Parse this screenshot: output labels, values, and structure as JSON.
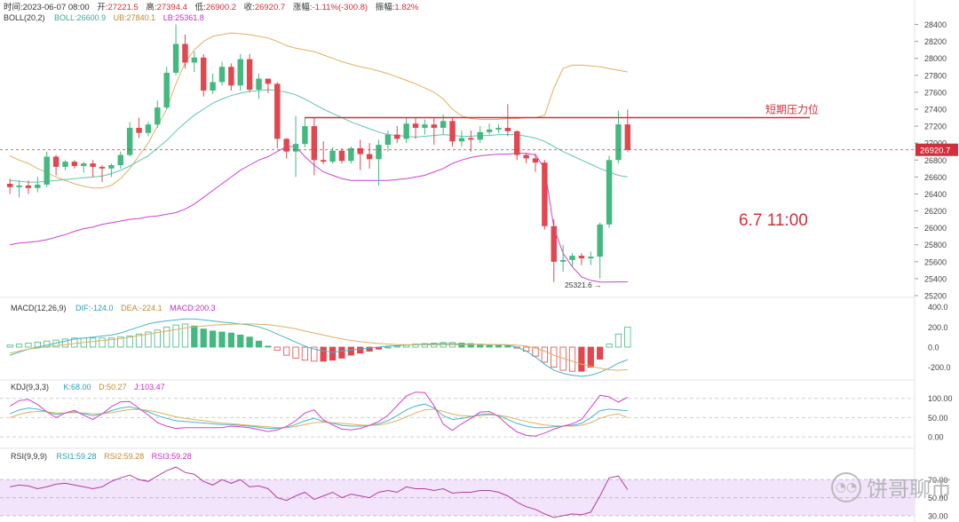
{
  "header": {
    "time_label": "时间:",
    "time_value": "2023-06-07 08:00",
    "open_label": "开:",
    "open_value": "27221.5",
    "high_label": "高:",
    "high_value": "27394.4",
    "low_label": "低:",
    "low_value": "26900.2",
    "close_label": "收:",
    "close_value": "26920.7",
    "change_label": "涨幅:",
    "change_value": "-1.11%(-300.8)",
    "amp_label": "振幅:",
    "amp_value": "1.82%"
  },
  "boll": {
    "name": "BOLL(20,2)",
    "mid": "BOLL:26600.9",
    "ub": "UB:27840.1",
    "lb": "LB:25361.8",
    "mid_color": "#5bc8b0",
    "ub_color": "#e0b060",
    "lb_color": "#d040d0"
  },
  "macd": {
    "name": "MACD(12,26,9)",
    "dif": "DIF:-124.0",
    "dea": "DEA:-224.1",
    "macd": "MACD:200.3",
    "dif_color": "#42b8c8",
    "dea_color": "#e0b060"
  },
  "kdj": {
    "name": "KDJ(9,3,3)",
    "k": "K:68.00",
    "d": "D:50.27",
    "j": "J:103.47",
    "k_color": "#42b8c8",
    "d_color": "#e0b060",
    "j_color": "#d040d0"
  },
  "rsi": {
    "name": "RSI(9,9,9)",
    "rsi1": "RSI1:59.28",
    "rsi2": "RSI2:59.28",
    "rsi3": "RSI3:59.28",
    "color": "#b040a0"
  },
  "annotations": {
    "resistance_label": "短期压力位",
    "resistance_price": 27300,
    "date_label": "6.7  11:00",
    "low_marker": "25321.6 →",
    "last_price": "26920.7",
    "accent": "#d0303b"
  },
  "colors": {
    "up": "#43b97f",
    "down": "#e0474f"
  },
  "watermark": "饼哥聊币",
  "chart_data": {
    "type": "candlestick",
    "price_axis": {
      "range": [
        25200,
        28500
      ],
      "ticks": [
        25200,
        25400,
        25600,
        25800,
        26000,
        26200,
        26400,
        26600,
        26800,
        27000,
        27200,
        27400,
        27600,
        27800,
        28000,
        28200,
        28400
      ]
    },
    "macd_axis": {
      "range": [
        -300,
        450
      ],
      "ticks": [
        400.0,
        200.0,
        0.0,
        -200.0
      ]
    },
    "kdj_axis": {
      "range": [
        -25,
        120
      ],
      "ticks": [
        100.0,
        50.0,
        0.0
      ]
    },
    "rsi_axis": {
      "range": [
        25,
        90
      ],
      "ticks": [
        70.0,
        50.0,
        30.0
      ]
    },
    "candles": [
      [
        26520,
        26580,
        26400,
        26480
      ],
      [
        26480,
        26560,
        26360,
        26500
      ],
      [
        26500,
        26560,
        26400,
        26470
      ],
      [
        26470,
        26600,
        26420,
        26510
      ],
      [
        26510,
        26900,
        26480,
        26840
      ],
      [
        26840,
        26860,
        26620,
        26720
      ],
      [
        26720,
        26800,
        26680,
        26780
      ],
      [
        26780,
        26800,
        26700,
        26730
      ],
      [
        26730,
        26780,
        26650,
        26760
      ],
      [
        26760,
        26800,
        26600,
        26720
      ],
      [
        26720,
        26740,
        26540,
        26700
      ],
      [
        26700,
        26760,
        26600,
        26740
      ],
      [
        26740,
        26900,
        26700,
        26860
      ],
      [
        26860,
        27250,
        26840,
        27180
      ],
      [
        27180,
        27300,
        27060,
        27120
      ],
      [
        27120,
        27250,
        27080,
        27220
      ],
      [
        27220,
        27500,
        27180,
        27420
      ],
      [
        27420,
        27900,
        27400,
        27830
      ],
      [
        27830,
        28400,
        27800,
        28170
      ],
      [
        28170,
        28280,
        27880,
        27950
      ],
      [
        27950,
        28080,
        27840,
        28010
      ],
      [
        28010,
        28050,
        27550,
        27620
      ],
      [
        27620,
        27820,
        27580,
        27720
      ],
      [
        27720,
        27960,
        27680,
        27900
      ],
      [
        27900,
        27940,
        27620,
        27680
      ],
      [
        27680,
        28050,
        27620,
        27990
      ],
      [
        27990,
        28050,
        27600,
        27630
      ],
      [
        27630,
        27820,
        27520,
        27760
      ],
      [
        27760,
        27760,
        27590,
        27700
      ],
      [
        27700,
        27720,
        26940,
        27050
      ],
      [
        27050,
        27060,
        26820,
        26900
      ],
      [
        26900,
        27320,
        26600,
        26990
      ],
      [
        26990,
        27300,
        26950,
        27200
      ],
      [
        27200,
        27300,
        26620,
        26800
      ],
      [
        26800,
        27020,
        26750,
        26780
      ],
      [
        26780,
        26950,
        26760,
        26910
      ],
      [
        26910,
        26940,
        26760,
        26790
      ],
      [
        26790,
        26960,
        26760,
        26940
      ],
      [
        26940,
        27040,
        26680,
        26870
      ],
      [
        26870,
        27000,
        26700,
        26810
      ],
      [
        26810,
        27040,
        26500,
        26980
      ],
      [
        26980,
        27150,
        26900,
        27100
      ],
      [
        27100,
        27200,
        27000,
        27050
      ],
      [
        27050,
        27300,
        27000,
        27230
      ],
      [
        27230,
        27300,
        27050,
        27180
      ],
      [
        27180,
        27280,
        27100,
        27220
      ],
      [
        27220,
        27300,
        26980,
        27180
      ],
      [
        27180,
        27340,
        27100,
        27260
      ],
      [
        27260,
        27300,
        26960,
        27020
      ],
      [
        27020,
        27150,
        26960,
        27060
      ],
      [
        27060,
        27150,
        26900,
        27040
      ],
      [
        27040,
        27200,
        27000,
        27130
      ],
      [
        27130,
        27230,
        27100,
        27160
      ],
      [
        27160,
        27220,
        27120,
        27180
      ],
      [
        27180,
        27460,
        27080,
        27140
      ],
      [
        27140,
        27150,
        26800,
        26860
      ],
      [
        26860,
        26880,
        26760,
        26820
      ],
      [
        26820,
        26880,
        26660,
        26770
      ],
      [
        26770,
        26800,
        25980,
        26020
      ],
      [
        26020,
        26100,
        25360,
        25600
      ],
      [
        25600,
        25800,
        25480,
        25620
      ],
      [
        25620,
        25700,
        25540,
        25670
      ],
      [
        25670,
        25700,
        25560,
        25640
      ],
      [
        25640,
        25720,
        25560,
        25660
      ],
      [
        25660,
        26060,
        25400,
        26040
      ],
      [
        26040,
        26850,
        26000,
        26800
      ],
      [
        26800,
        27380,
        26760,
        27221
      ],
      [
        27221,
        27394,
        26900,
        26920
      ]
    ],
    "boll_upper": [
      26850,
      26800,
      26760,
      26700,
      26650,
      26600,
      26560,
      26520,
      26490,
      26470,
      26470,
      26500,
      26580,
      26700,
      26850,
      27000,
      27200,
      27400,
      27700,
      27950,
      28100,
      28200,
      28260,
      28280,
      28300,
      28290,
      28280,
      28260,
      28240,
      28200,
      28150,
      28120,
      28100,
      28080,
      28040,
      28000,
      27960,
      27930,
      27900,
      27880,
      27850,
      27820,
      27780,
      27740,
      27700,
      27650,
      27600,
      27520,
      27400,
      27320,
      27290,
      27280,
      27280,
      27280,
      27290,
      27290,
      27300,
      27300,
      27330,
      27650,
      27880,
      27920,
      27920,
      27910,
      27900,
      27880,
      27860,
      27840
    ],
    "boll_mid": [
      26560,
      26550,
      26540,
      26540,
      26550,
      26560,
      26570,
      26580,
      26590,
      26600,
      26610,
      26640,
      26680,
      26730,
      26790,
      26850,
      26940,
      27030,
      27140,
      27240,
      27330,
      27400,
      27470,
      27520,
      27560,
      27590,
      27610,
      27620,
      27630,
      27620,
      27600,
      27570,
      27520,
      27460,
      27400,
      27350,
      27300,
      27250,
      27210,
      27170,
      27130,
      27100,
      27090,
      27080,
      27070,
      27080,
      27090,
      27100,
      27090,
      27080,
      27080,
      27090,
      27090,
      27100,
      27100,
      27100,
      27080,
      27060,
      27020,
      26960,
      26900,
      26850,
      26800,
      26750,
      26700,
      26660,
      26620,
      26600
    ],
    "boll_lower": [
      25800,
      25820,
      25830,
      25840,
      25860,
      25890,
      25920,
      25960,
      25990,
      26010,
      26040,
      26060,
      26080,
      26100,
      26110,
      26130,
      26140,
      26160,
      26180,
      26220,
      26280,
      26360,
      26440,
      26520,
      26600,
      26680,
      26740,
      26800,
      26840,
      26900,
      26960,
      26960,
      26840,
      26740,
      26660,
      26620,
      26580,
      26560,
      26560,
      26560,
      26560,
      26560,
      26570,
      26580,
      26600,
      26620,
      26660,
      26700,
      26760,
      26800,
      26830,
      26850,
      26860,
      26870,
      26870,
      26880,
      26880,
      26860,
      26700,
      26000,
      25700,
      25540,
      25420,
      25380,
      25360,
      25361,
      25362,
      25362
    ],
    "macd_hist": [
      20,
      30,
      40,
      50,
      60,
      70,
      80,
      90,
      90,
      90,
      90,
      90,
      100,
      110,
      130,
      150,
      170,
      200,
      220,
      230,
      210,
      180,
      160,
      150,
      140,
      120,
      100,
      60,
      10,
      -30,
      -80,
      -110,
      -130,
      -140,
      -140,
      -130,
      -110,
      -80,
      -60,
      -40,
      -20,
      0,
      10,
      20,
      30,
      35,
      40,
      45,
      45,
      40,
      35,
      30,
      25,
      20,
      15,
      -10,
      -40,
      -90,
      -150,
      -200,
      -230,
      -240,
      -240,
      -200,
      -120,
      30,
      130,
      200
    ],
    "macd_dif": [
      -80,
      -50,
      -20,
      0,
      20,
      40,
      60,
      80,
      90,
      100,
      110,
      120,
      140,
      170,
      200,
      230,
      250,
      260,
      270,
      280,
      280,
      270,
      260,
      250,
      240,
      230,
      220,
      200,
      170,
      130,
      90,
      50,
      10,
      -20,
      -40,
      -50,
      -40,
      -30,
      -20,
      -10,
      0,
      10,
      15,
      20,
      25,
      30,
      32,
      35,
      33,
      30,
      28,
      26,
      25,
      24,
      20,
      0,
      -40,
      -100,
      -170,
      -230,
      -260,
      -280,
      -290,
      -280,
      -250,
      -210,
      -160,
      -124
    ],
    "macd_dea": [
      -60,
      -40,
      -20,
      -10,
      5,
      15,
      25,
      35,
      45,
      55,
      65,
      75,
      85,
      100,
      115,
      130,
      145,
      160,
      175,
      190,
      200,
      210,
      218,
      224,
      228,
      230,
      230,
      228,
      222,
      212,
      198,
      182,
      160,
      140,
      120,
      100,
      82,
      66,
      54,
      44,
      36,
      30,
      26,
      24,
      23,
      23,
      23,
      24,
      25,
      26,
      26,
      26,
      25,
      25,
      24,
      20,
      10,
      -10,
      -40,
      -80,
      -110,
      -140,
      -170,
      -190,
      -210,
      -225,
      -230,
      -224
    ],
    "kdj_k": [
      60,
      70,
      75,
      72,
      65,
      58,
      62,
      65,
      60,
      55,
      60,
      68,
      75,
      78,
      72,
      65,
      55,
      48,
      42,
      40,
      38,
      36,
      34,
      32,
      32,
      30,
      28,
      25,
      22,
      22,
      25,
      32,
      42,
      48,
      40,
      35,
      30,
      28,
      28,
      30,
      34,
      42,
      55,
      70,
      80,
      85,
      75,
      55,
      45,
      48,
      52,
      58,
      60,
      55,
      45,
      35,
      28,
      24,
      24,
      26,
      28,
      30,
      35,
      50,
      68,
      72,
      70,
      68
    ],
    "kdj_d": [
      50,
      58,
      64,
      66,
      65,
      62,
      62,
      63,
      62,
      60,
      60,
      63,
      67,
      71,
      71,
      69,
      64,
      58,
      52,
      48,
      45,
      42,
      39,
      36,
      34,
      32,
      30,
      28,
      26,
      24,
      24,
      27,
      32,
      37,
      38,
      37,
      35,
      33,
      31,
      30,
      31,
      35,
      42,
      52,
      62,
      70,
      72,
      66,
      59,
      55,
      54,
      55,
      57,
      56,
      52,
      46,
      40,
      35,
      31,
      29,
      28,
      28,
      30,
      37,
      48,
      56,
      60,
      50
    ],
    "kdj_j": [
      80,
      94,
      97,
      84,
      65,
      50,
      62,
      69,
      56,
      45,
      60,
      78,
      91,
      92,
      74,
      57,
      37,
      28,
      22,
      24,
      24,
      24,
      24,
      24,
      28,
      26,
      24,
      19,
      14,
      18,
      27,
      42,
      62,
      70,
      44,
      31,
      20,
      18,
      22,
      30,
      40,
      56,
      81,
      106,
      116,
      115,
      81,
      33,
      17,
      34,
      48,
      64,
      66,
      53,
      31,
      13,
      4,
      2,
      10,
      20,
      28,
      34,
      45,
      76,
      108,
      104,
      90,
      103
    ],
    "rsi": [
      62,
      64,
      63,
      60,
      62,
      65,
      66,
      64,
      62,
      60,
      62,
      68,
      72,
      75,
      70,
      68,
      74,
      80,
      84,
      78,
      76,
      68,
      64,
      70,
      66,
      70,
      62,
      63,
      60,
      50,
      47,
      52,
      56,
      48,
      52,
      56,
      50,
      54,
      52,
      50,
      56,
      58,
      56,
      62,
      60,
      60,
      58,
      60,
      55,
      56,
      56,
      58,
      58,
      56,
      52,
      45,
      40,
      37,
      32,
      28,
      30,
      32,
      31,
      34,
      52,
      72,
      74,
      59
    ]
  }
}
